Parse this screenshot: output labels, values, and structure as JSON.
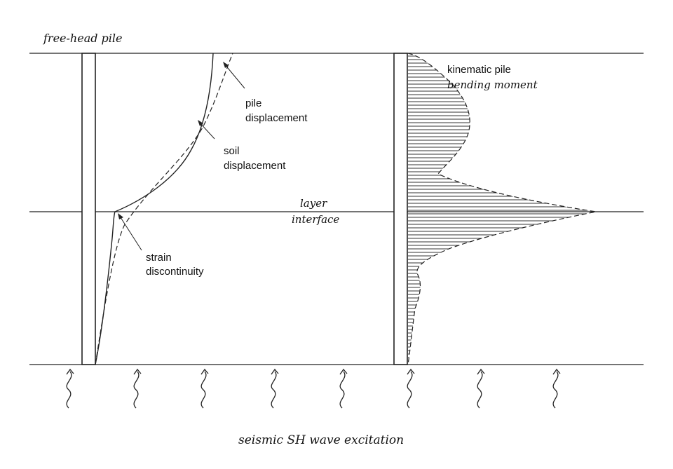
{
  "labels": {
    "title": "free-head pile",
    "pile_displacement": [
      "pile",
      "displacement"
    ],
    "soil_displacement": [
      "soil",
      "displacement"
    ],
    "strain_discontinuity": [
      "strain",
      "discontinuity"
    ],
    "layer_interface": [
      "layer",
      "interface"
    ],
    "bending_moment": [
      "kinematic pile",
      "bending moment"
    ],
    "excitation": "seismic SH wave excitation"
  },
  "wave_count": 8,
  "icons": {
    "wave": "seismic-wave-arrow-icon",
    "pile": "pile-column"
  }
}
